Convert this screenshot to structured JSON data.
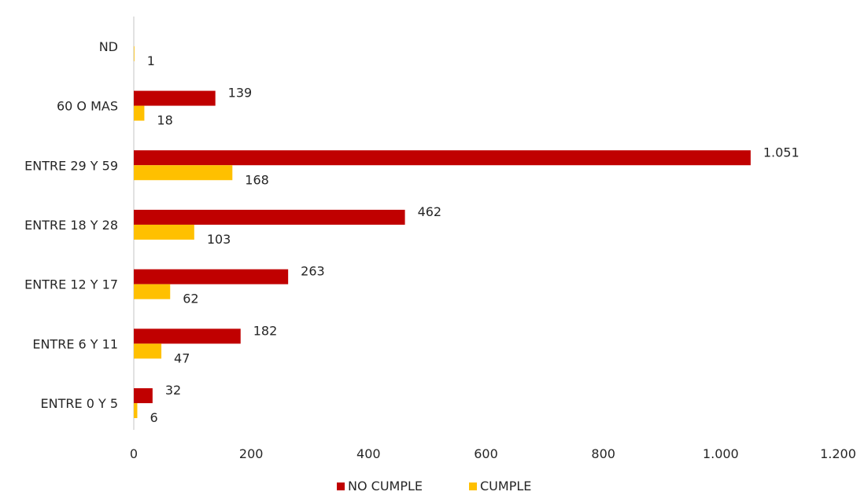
{
  "chart_data": {
    "type": "bar",
    "orientation": "horizontal",
    "categories": [
      "ENTRE 0 Y 5",
      "ENTRE 6 Y 11",
      "ENTRE 12 Y 17",
      "ENTRE 18 Y 28",
      "ENTRE 29 Y 59",
      "60 O MAS",
      "ND"
    ],
    "series": [
      {
        "name": "NO CUMPLE",
        "color": "#C00000",
        "values": [
          32,
          182,
          263,
          462,
          1051,
          139,
          null
        ],
        "labels": [
          "32",
          "182",
          "263",
          "462",
          "1.051",
          "139",
          ""
        ]
      },
      {
        "name": "CUMPLE",
        "color": "#FFC000",
        "values": [
          6,
          47,
          62,
          103,
          168,
          18,
          1
        ],
        "labels": [
          "6",
          "47",
          "62",
          "103",
          "168",
          "18",
          "1"
        ]
      }
    ],
    "xlim": [
      0,
      1200
    ],
    "x_ticks": [
      0,
      200,
      400,
      600,
      800,
      1000,
      1200
    ],
    "x_tick_labels": [
      "0",
      "200",
      "400",
      "600",
      "800",
      "1.000",
      "1.200"
    ],
    "title": "",
    "xlabel": "",
    "ylabel": "",
    "grid": false,
    "legend_position": "bottom"
  }
}
